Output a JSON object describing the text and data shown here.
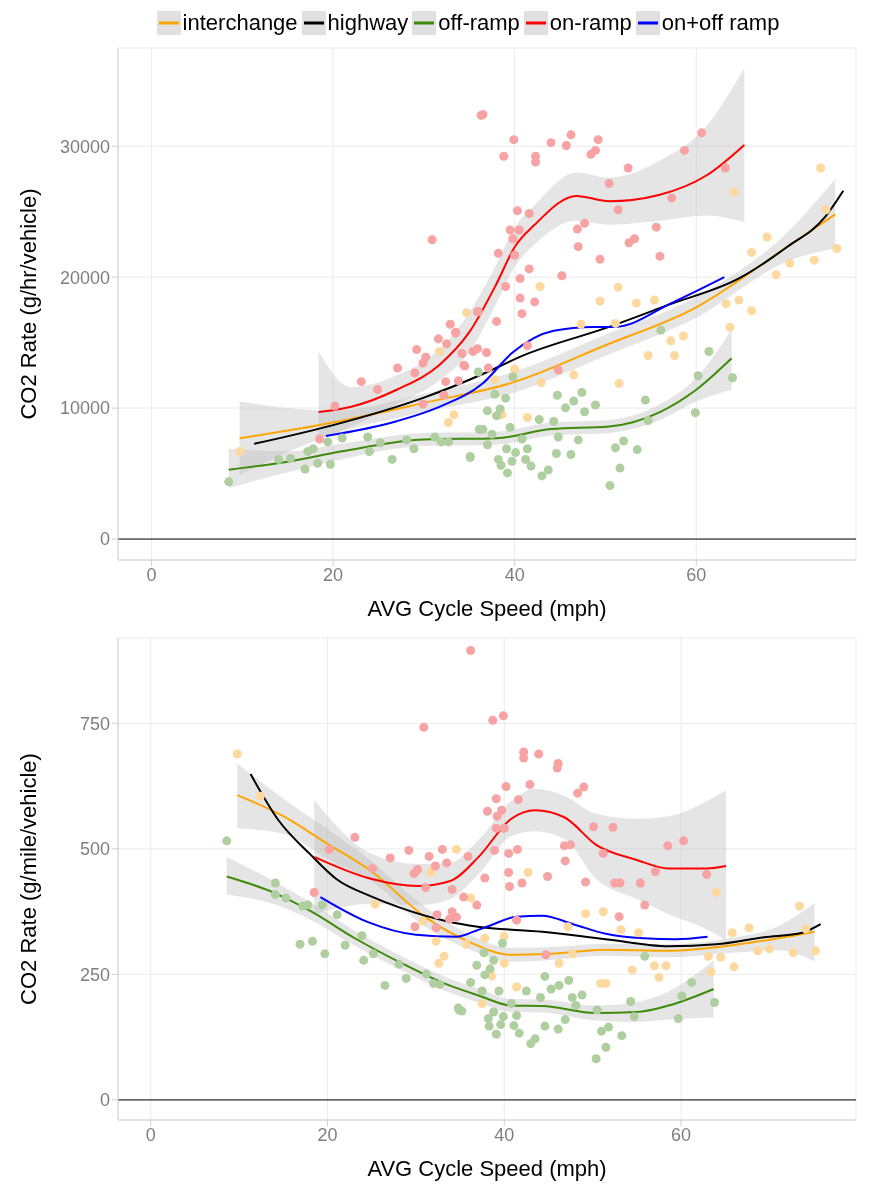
{
  "chart_data": [
    {
      "type": "line",
      "xlabel": "AVG Cycle Speed (mph)",
      "ylabel": "CO2 Rate (g/hr/vehicle)",
      "xlim": [
        -3.7,
        77.6
      ],
      "xticks": [
        0,
        20,
        40,
        60
      ],
      "ylim": [
        -1600,
        37500
      ],
      "yticks": [
        0,
        10000,
        20000,
        30000
      ],
      "grid": true,
      "legend": "top",
      "ref_lines": [
        {
          "axis": "y",
          "value": 0,
          "color": "#000000"
        }
      ],
      "series": [
        {
          "type": "scatter",
          "marker": "circle",
          "color": "#fdd9a0",
          "x": [
            9.7,
            34.7,
            31.7,
            33.3,
            32.7,
            73.7,
            64.2,
            74.3,
            75.5,
            67.8,
            73,
            66.1,
            68.8,
            70.3,
            64.7,
            63.3,
            66.1,
            63.7,
            58.6,
            57.2,
            55.4,
            53.4,
            51.4,
            49.4,
            42.8,
            54.7,
            57.6,
            51.5,
            46.5,
            42.9,
            41.4,
            40,
            37.8,
            38.6,
            47.3,
            51.1
          ],
          "values": [
            6680,
            17290,
            14320,
            9500,
            8900,
            28340,
            26490,
            25150,
            22190,
            23070,
            21300,
            21890,
            20180,
            21070,
            18250,
            17960,
            17440,
            16180,
            15510,
            15140,
            18250,
            18030,
            19220,
            18180,
            19290,
            14020,
            14020,
            11870,
            12540,
            11950,
            9280,
            12990,
            12170,
            9500,
            16400,
            16470
          ]
        },
        {
          "type": "scatter",
          "marker": "circle",
          "color": "#f7a3a3",
          "x": [
            36.3,
            30.9,
            32.9,
            33.5,
            31.6,
            32.5,
            29.2,
            30.2,
            27.1,
            29.9,
            29,
            23.1,
            24.9,
            34.4,
            35.4,
            32.4,
            32.2,
            29.9,
            20.2,
            18.5,
            36,
            36.5,
            39.9,
            38.8,
            42.3,
            42.3,
            44,
            46.2,
            45.7,
            49.2,
            48.9,
            48.4,
            52.5,
            50.4,
            60.6,
            58.7,
            63.2,
            57.3,
            51.4,
            40.3,
            41.6,
            46.9,
            47.7,
            55.6,
            39.5,
            40.5,
            53.2,
            52.6,
            39.8,
            38.2,
            47,
            56,
            40,
            49.4,
            41.6,
            40.6,
            45.2,
            39,
            40.6,
            42.2,
            40.8,
            38,
            35.9,
            33.5,
            34.2,
            35.9,
            36.9,
            34.5,
            37.1,
            44.8,
            33.8,
            41.4
          ],
          "values": [
            32350,
            22850,
            16400,
            15730,
            15290,
            14910,
            14470,
            13880,
            13060,
            13430,
            12690,
            12020,
            11430,
            13280,
            14320,
            12020,
            10980,
            10310,
            10160,
            7640,
            17360,
            32420,
            30500,
            29230,
            29230,
            28790,
            30270,
            30870,
            30050,
            30500,
            29680,
            29380,
            28340,
            27160,
            31020,
            29680,
            28340,
            26050,
            25150,
            25080,
            24860,
            23670,
            24120,
            23820,
            23600,
            23600,
            22930,
            22630,
            22930,
            21820,
            22330,
            21590,
            21670,
            21370,
            20630,
            19890,
            20110,
            19290,
            18400,
            18110,
            17210,
            16620,
            17360,
            15800,
            14170,
            14540,
            14250,
            13210,
            13060,
            12910,
            12090,
            14770
          ]
        },
        {
          "type": "scatter",
          "marker": "circle",
          "color": "#b0cfa0",
          "x": [
            8.5,
            14,
            15.3,
            17.2,
            17.8,
            16.9,
            18.3,
            19.7,
            19.4,
            21,
            23.8,
            25.2,
            24,
            26.5,
            28.1,
            28.9,
            31.2,
            31.9,
            32.7,
            35.1,
            36.1,
            37,
            38,
            38.4,
            39,
            37.8,
            39.8,
            36,
            44.7,
            46.5,
            47.4,
            48.9,
            45.6,
            47.7,
            42.7,
            39.5,
            36.5,
            37.5,
            44.3,
            47,
            44.8,
            40.8,
            39.1,
            37,
            40.1,
            41.4,
            35.1,
            38.2,
            39.7,
            41.2,
            44.6,
            46.2,
            38.5,
            41.8,
            39.2,
            43,
            43.7,
            50.5,
            51.6,
            51.1,
            52,
            53.5,
            54.4,
            54.7,
            56.1,
            59.9,
            60.2,
            61.4,
            64
          ],
          "values": [
            4380,
            6080,
            6160,
            6680,
            6900,
            5340,
            5790,
            5710,
            7420,
            7720,
            7790,
            7350,
            6680,
            6080,
            7570,
            6900,
            7790,
            7420,
            7420,
            6310,
            8380,
            9790,
            9420,
            9940,
            10760,
            11060,
            12390,
            12760,
            10980,
            10540,
            11200,
            10240,
            10020,
            9720,
            9130,
            8530,
            8380,
            8010,
            8980,
            7570,
            7790,
            7640,
            6900,
            7200,
            6600,
            6900,
            6230,
            6080,
            5940,
            6080,
            6530,
            6460,
            5640,
            5570,
            5050,
            4820,
            5270,
            4080,
            5420,
            6970,
            7490,
            6830,
            10610,
            9050,
            15950,
            9650,
            12470,
            14320,
            12320
          ]
        },
        {
          "name": "interchange",
          "color": "#ffa500",
          "x": [
            9.7,
            20,
            30,
            40,
            50,
            60,
            70,
            75.3
          ],
          "values": [
            7700,
            8900,
            10400,
            12000,
            14800,
            17700,
            22300,
            24800
          ],
          "lower": [
            4900,
            8000,
            9700,
            11200,
            14000,
            16900,
            21200,
            22200
          ],
          "upper": [
            10500,
            9800,
            11100,
            12800,
            15600,
            18500,
            23400,
            27500
          ]
        },
        {
          "name": "highway",
          "color": "#000000",
          "x": [
            11.3,
            20,
            30,
            36.8,
            40.7,
            50.4,
            57,
            64.7,
            70,
            74.2,
            76.2
          ],
          "values": [
            7270,
            8700,
            10800,
            12700,
            13950,
            16200,
            17900,
            19900,
            22300,
            24600,
            26600
          ]
        },
        {
          "name": "off-ramp",
          "color": "#3d8b0a",
          "x": [
            8.5,
            15,
            21,
            30,
            38,
            44,
            50.4,
            56,
            60,
            63.9
          ],
          "values": [
            5300,
            5900,
            6700,
            7600,
            7700,
            8400,
            8600,
            9700,
            11400,
            13800
          ],
          "lower": [
            3900,
            5100,
            6100,
            7100,
            7200,
            7900,
            8100,
            9100,
            10500,
            11400
          ],
          "upper": [
            6900,
            6700,
            7300,
            8100,
            8200,
            8900,
            9100,
            10300,
            12300,
            16000
          ]
        },
        {
          "name": "on-ramp",
          "color": "#ff0000",
          "x": [
            18.4,
            22,
            27,
            31.7,
            35,
            38,
            40,
            42.2,
            46.8,
            50.4,
            56,
            61.2,
            65.3
          ],
          "values": [
            9700,
            10100,
            11400,
            13300,
            15800,
            19500,
            22300,
            24000,
            26200,
            25800,
            26300,
            27800,
            30100
          ],
          "lower": [
            7600,
            8600,
            10300,
            12100,
            14300,
            18000,
            20800,
            22500,
            24300,
            24000,
            24300,
            24700,
            24200
          ],
          "upper": [
            14300,
            11600,
            12500,
            14500,
            17300,
            21000,
            23800,
            25500,
            28000,
            27600,
            28900,
            31600,
            36000
          ]
        },
        {
          "name": "on+off ramp",
          "color": "#0000ff",
          "x": [
            19.2,
            27,
            31.7,
            36.5,
            39.7,
            44.3,
            48.6,
            51,
            57.5,
            63.1
          ],
          "values": [
            7870,
            9000,
            10100,
            11900,
            14200,
            15900,
            16200,
            16200,
            18100,
            20000
          ]
        }
      ]
    },
    {
      "type": "line",
      "xlabel": "AVG Cycle Speed (mph)",
      "ylabel": "CO2 Rate (g/mile/vehicle)",
      "xlim": [
        -3.7,
        79.8
      ],
      "xticks": [
        0,
        20,
        40,
        60
      ],
      "ylim": [
        -40,
        920
      ],
      "yticks": [
        0,
        250,
        500,
        750
      ],
      "grid": true,
      "ref_lines": [
        {
          "axis": "y",
          "value": 0,
          "color": "#000000"
        }
      ],
      "series": [
        {
          "type": "scatter",
          "marker": "circle",
          "color": "#fdd9a0",
          "x": [
            9.8,
            12.4,
            25.4,
            34.6,
            31.7,
            30.8,
            32.3,
            32.6,
            33.2,
            36.2,
            35.7,
            42.7,
            49.2,
            51.2,
            47.2,
            53.2,
            55.2,
            73.4,
            64,
            67.7,
            66,
            65.8,
            70,
            68.7,
            72.7,
            74.1,
            75.2,
            63.1,
            64.5,
            63.4,
            58.3,
            57.5,
            57,
            54.5,
            50.9,
            51.5,
            47.7,
            46.2,
            40,
            41.4,
            38.6,
            37.5,
            40,
            37.8
          ],
          "values": [
            689,
            605,
            390,
            499,
            453,
            356,
            316,
            272,
            286,
            402,
            310,
            453,
            371,
            375,
            345,
            339,
            333,
            386,
            413,
            343,
            265,
            333,
            301,
            297,
            293,
            341,
            297,
            286,
            284,
            255,
            267,
            244,
            267,
            259,
            232,
            232,
            291,
            272,
            272,
            225,
            247,
            192,
            326,
            322
          ]
        },
        {
          "type": "scatter",
          "marker": "circle",
          "color": "#f7a3a3",
          "x": [
            36.2,
            30.9,
            23.1,
            20.2,
            27.1,
            29.2,
            31.5,
            33,
            33.5,
            32.2,
            30.2,
            29.8,
            35.9,
            25.1,
            18.5,
            31.1,
            34.1,
            32.4,
            34.1,
            29.9,
            32.3,
            35.4,
            33.8,
            34.6,
            38.7,
            39.9,
            42.2,
            42.2,
            43.9,
            46,
            46.1,
            40.2,
            42.9,
            48.3,
            49,
            39.1,
            41.6,
            38.1,
            39.7,
            39.2,
            39.1,
            40,
            50.1,
            52.3,
            38.9,
            40.5,
            41.5,
            46.8,
            47.5,
            46.9,
            51.2,
            58.5,
            60.3,
            57.1,
            62.9,
            40.5,
            37.8,
            42,
            40.6,
            44.9,
            49.2,
            52.5,
            53.1,
            55.4,
            55.9,
            53,
            36.9,
            41.4,
            44.7
          ],
          "values": [
            895,
            742,
            523,
            499,
            482,
            497,
            485,
            499,
            472,
            466,
            459,
            451,
            485,
            461,
            413,
            423,
            419,
            369,
            375,
            345,
            343,
            404,
            360,
            364,
            756,
            765,
            693,
            681,
            689,
            661,
            670,
            624,
            628,
            611,
            623,
            600,
            598,
            575,
            577,
            565,
            541,
            541,
            544,
            543,
            497,
            491,
            499,
            506,
            508,
            476,
            491,
            506,
            516,
            455,
            449,
            453,
            442,
            432,
            425,
            445,
            434,
            432,
            432,
            432,
            388,
            365,
            388,
            358,
            289
          ]
        },
        {
          "type": "scatter",
          "marker": "circle",
          "color": "#b0cfa0",
          "x": [
            8.6,
            14.1,
            14.1,
            15.3,
            17.2,
            17.8,
            19.4,
            21.1,
            16.9,
            18.3,
            19.7,
            22,
            23.9,
            24.1,
            25.2,
            26.5,
            28.1,
            28.9,
            31.2,
            32,
            32.7,
            34.8,
            35.2,
            36.2,
            36.9,
            37.8,
            38.4,
            38.8,
            39.8,
            37.7,
            37.5,
            39.4,
            40.8,
            42.5,
            44.1,
            44.6,
            45.3,
            46.2,
            47.3,
            48.8,
            47.7,
            48.1,
            46.9,
            46.1,
            44.6,
            43,
            43.5,
            41.7,
            41.1,
            39.6,
            39.1,
            38.3,
            38.2,
            39.9,
            38.8,
            41.4,
            34.9,
            50.4,
            51.5,
            51,
            51.8,
            53.3,
            50.5,
            54.3,
            54.7,
            55.9,
            59.7,
            60.1,
            61.2,
            63.8
          ],
          "values": [
            516,
            432,
            409,
            402,
            386,
            388,
            388,
            369,
            310,
            316,
            291,
            308,
            327,
            278,
            291,
            228,
            270,
            242,
            251,
            232,
            230,
            183,
            177,
            234,
            268,
            249,
            261,
            278,
            312,
            293,
            217,
            217,
            192,
            217,
            204,
            246,
            221,
            228,
            238,
            209,
            204,
            188,
            160,
            141,
            147,
            112,
            122,
            133,
            148,
            150,
            131,
            147,
            162,
            166,
            175,
            168,
            179,
            82,
            105,
            137,
            145,
            128,
            179,
            196,
            166,
            286,
            162,
            207,
            234,
            194
          ]
        },
        {
          "color": "#ffa500",
          "x": [
            9.8,
            15,
            20,
            25,
            31,
            36,
            40.8,
            45,
            51.5,
            58.6,
            65.8,
            71,
            75.1
          ],
          "values": [
            607,
            565,
            510,
            455,
            365,
            315,
            289,
            291,
            299,
            297,
            308,
            322,
            335
          ],
          "lower": [
            541,
            530,
            480,
            435,
            345,
            300,
            275,
            278,
            287,
            284,
            293,
            298,
            276
          ],
          "upper": [
            670,
            600,
            540,
            475,
            385,
            330,
            303,
            304,
            311,
            310,
            323,
            346,
            392
          ]
        },
        {
          "color": "#000000",
          "x": [
            11.3,
            14.5,
            18,
            21,
            25,
            28.2,
            33.5,
            37,
            44.3,
            51.5,
            58.6,
            64,
            69.4,
            73.7,
            75.8
          ],
          "values": [
            649,
            556,
            490,
            440,
            405,
            383,
            356,
            345,
            335,
            320,
            306,
            310,
            324,
            333,
            350
          ]
        },
        {
          "color": "#3d8b0a",
          "x": [
            8.6,
            13.9,
            18.2,
            23.1,
            28.2,
            33.5,
            37.1,
            40.8,
            44.3,
            50.4,
            55,
            58.6,
            63.7
          ],
          "values": [
            445,
            413,
            375,
            322,
            274,
            230,
            208,
            188,
            187,
            173,
            175,
            188,
            221
          ],
          "lower": [
            409,
            390,
            358,
            307,
            260,
            216,
            194,
            175,
            174,
            158,
            155,
            160,
            164
          ],
          "upper": [
            484,
            436,
            392,
            337,
            288,
            244,
            222,
            201,
            200,
            188,
            195,
            216,
            278
          ]
        },
        {
          "color": "#ff0000",
          "x": [
            18.5,
            24.6,
            30.3,
            33.9,
            37.1,
            40.8,
            43.5,
            46.8,
            50.4,
            55,
            58.6,
            62.9,
            65.1
          ],
          "values": [
            484,
            442,
            426,
            436,
            484,
            560,
            577,
            563,
            508,
            478,
            461,
            461,
            466
          ],
          "lower": [
            369,
            390,
            388,
            400,
            450,
            525,
            535,
            520,
            440,
            400,
            370,
            340,
            318
          ],
          "upper": [
            598,
            494,
            470,
            472,
            518,
            595,
            620,
            606,
            570,
            560,
            565,
            595,
            617
          ]
        },
        {
          "color": "#0000ff",
          "x": [
            19.2,
            24.6,
            30,
            34.6,
            36.8,
            38.2,
            41.4,
            44.3,
            47.8,
            51.5,
            55.8,
            59.4,
            63
          ],
          "values": [
            404,
            354,
            329,
            325,
            337,
            346,
            365,
            367,
            350,
            331,
            322,
            320,
            325
          ]
        }
      ]
    }
  ]
}
